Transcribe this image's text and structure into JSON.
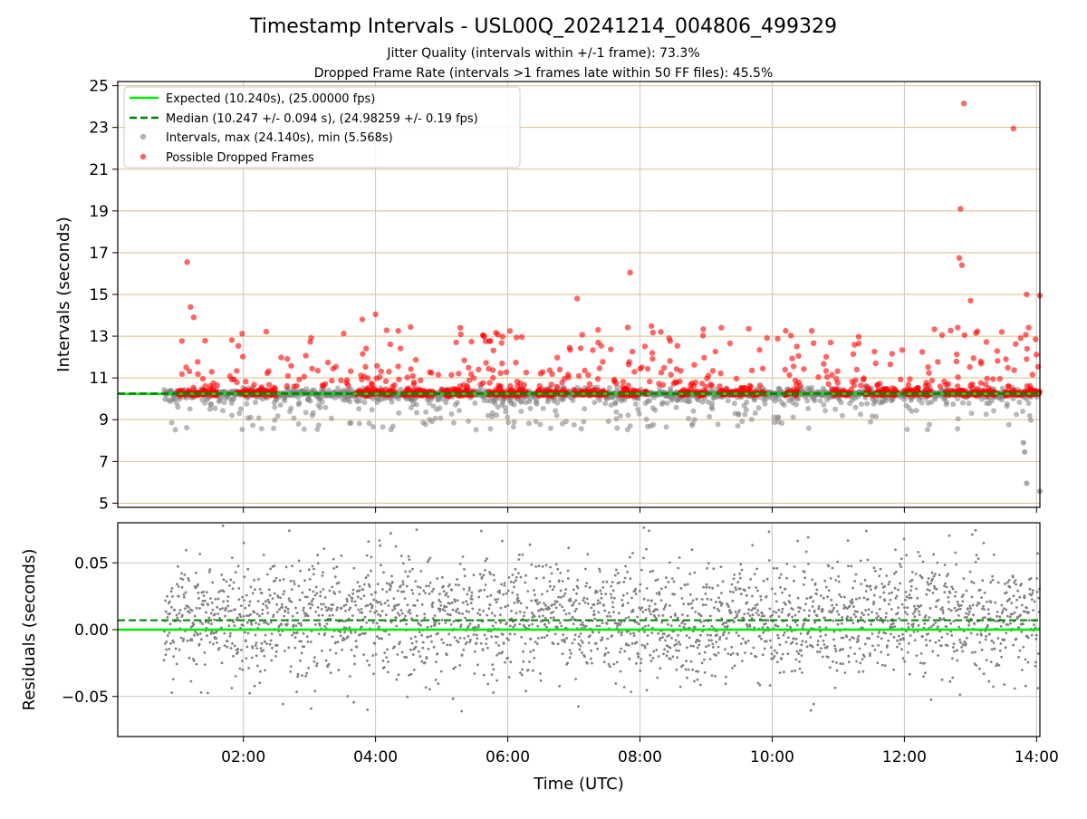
{
  "figure": {
    "title": "Timestamp Intervals - USL00Q_20241214_004806_499329",
    "subtitle_1": "Jitter Quality (intervals within +/-1 frame): 73.3%",
    "subtitle_2": "Dropped Frame Rate (intervals >1 frames late within 50 FF files): 45.5%"
  },
  "colors": {
    "expected": "#00ee00",
    "median": "#008000",
    "intervals": "#808080",
    "dropped": "#ff0000",
    "hgrid_top": "#d8bf80",
    "grid": "#c8c8c8"
  },
  "chart_data": [
    {
      "type": "scatter",
      "ylabel": "Intervals (seconds)",
      "xlim_hours": [
        0.1,
        14.05
      ],
      "ylim": [
        4.8,
        25.2
      ],
      "yticks": [
        5,
        7,
        9,
        11,
        13,
        15,
        17,
        19,
        21,
        23,
        25
      ],
      "grid": true,
      "legend_position": "top-left",
      "legend": [
        "Expected (10.240s), (25.00000 fps)",
        "Median (10.247 +/- 0.094 s), (24.98259 +/- 0.19 fps)",
        "Intervals, max (24.140s), min (5.568s)",
        "Possible Dropped Frames"
      ],
      "expected_value": 10.24,
      "median_value": 10.247,
      "series_summary": {
        "intervals_max": 24.14,
        "intervals_min": 5.568
      },
      "dropped_frames_notable": [
        {
          "x": 1.15,
          "y": 16.55
        },
        {
          "x": 1.2,
          "y": 14.4
        },
        {
          "x": 1.25,
          "y": 13.9
        },
        {
          "x": 3.8,
          "y": 13.8
        },
        {
          "x": 4.0,
          "y": 14.05
        },
        {
          "x": 7.05,
          "y": 14.8
        },
        {
          "x": 7.85,
          "y": 16.05
        },
        {
          "x": 12.85,
          "y": 19.1
        },
        {
          "x": 12.83,
          "y": 16.75
        },
        {
          "x": 12.87,
          "y": 16.4
        },
        {
          "x": 12.9,
          "y": 24.15
        },
        {
          "x": 13.0,
          "y": 14.7
        },
        {
          "x": 13.65,
          "y": 22.95
        },
        {
          "x": 13.85,
          "y": 15.0
        },
        {
          "x": 14.05,
          "y": 14.95
        }
      ],
      "intervals_notable": [
        {
          "x": 13.8,
          "y": 7.9
        },
        {
          "x": 13.82,
          "y": 7.45
        },
        {
          "x": 13.85,
          "y": 5.95
        },
        {
          "x": 14.05,
          "y": 5.57
        }
      ]
    },
    {
      "type": "scatter",
      "xlabel": "Time (UTC)",
      "ylabel": "Residuals (seconds)",
      "xlim_hours": [
        0.1,
        14.05
      ],
      "ylim": [
        -0.08,
        0.08
      ],
      "yticks": [
        "0.05",
        "0.00",
        "−0.05"
      ],
      "yticks_values": [
        0.05,
        0.0,
        -0.05
      ],
      "xticks": [
        "02:00",
        "04:00",
        "06:00",
        "08:00",
        "10:00",
        "12:00",
        "14:00"
      ],
      "xticks_hours": [
        2,
        4,
        6,
        8,
        10,
        12,
        14
      ],
      "expected_value": 0.0,
      "median_value": 0.007,
      "grid": true
    }
  ]
}
